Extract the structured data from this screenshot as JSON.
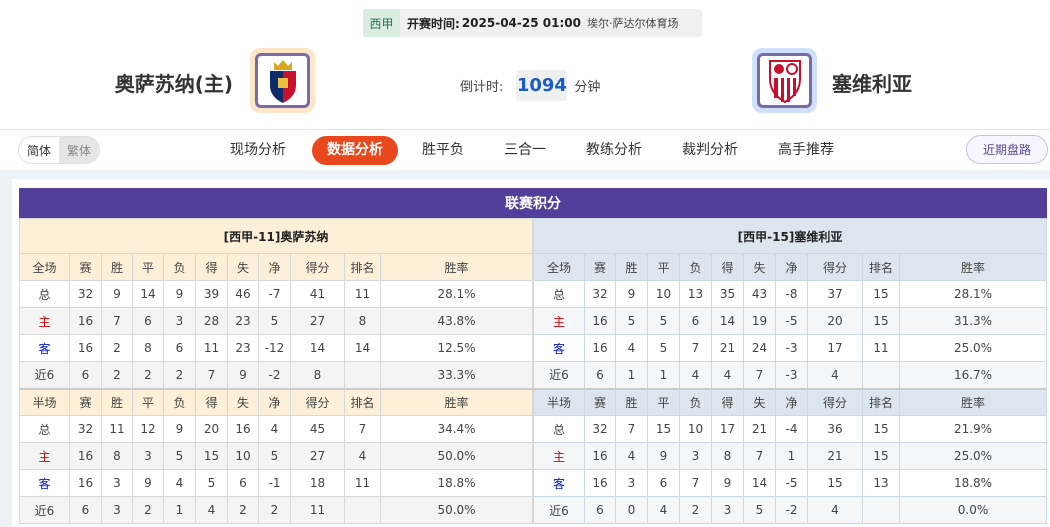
{
  "match_info": {
    "league": "西甲",
    "time_label": "开赛时间:",
    "time": "2025-04-25 01:00",
    "venue": "埃尔·萨达尔体育场"
  },
  "home": {
    "name": "奥萨苏纳(主)",
    "logo_bg": "#fde6c8"
  },
  "away": {
    "name": "塞维利亚",
    "logo_bg": "#cfe0fb"
  },
  "countdown": {
    "label": "倒计时:",
    "value": "1094",
    "unit": "分钟"
  },
  "lang": {
    "simplified": "简体",
    "traditional": "繁体"
  },
  "nav": {
    "items": [
      "现场分析",
      "数据分析",
      "胜平负",
      "三合一",
      "教练分析",
      "裁判分析",
      "高手推荐"
    ],
    "active": "数据分析",
    "recent": "近期盘路"
  },
  "colors": {
    "accent": "#e8481c",
    "title_bar": "#523f9b",
    "count": "#1a5dc8"
  },
  "standings": {
    "title": "联赛积分",
    "home": {
      "team_label": "[西甲-11]奥萨苏纳",
      "full_header": [
        "全场",
        "赛",
        "胜",
        "平",
        "负",
        "得",
        "失",
        "净",
        "得分",
        "排名",
        "胜率"
      ],
      "full_rows": [
        [
          "总",
          "32",
          "9",
          "14",
          "9",
          "39",
          "46",
          "-7",
          "41",
          "11",
          "28.1%"
        ],
        [
          "主",
          "16",
          "7",
          "6",
          "3",
          "28",
          "23",
          "5",
          "27",
          "8",
          "43.8%"
        ],
        [
          "客",
          "16",
          "2",
          "8",
          "6",
          "11",
          "23",
          "-12",
          "14",
          "14",
          "12.5%"
        ],
        [
          "近6",
          "6",
          "2",
          "2",
          "2",
          "7",
          "9",
          "-2",
          "8",
          "",
          "33.3%"
        ]
      ],
      "half_header": [
        "半场",
        "赛",
        "胜",
        "平",
        "负",
        "得",
        "失",
        "净",
        "得分",
        "排名",
        "胜率"
      ],
      "half_rows": [
        [
          "总",
          "32",
          "11",
          "12",
          "9",
          "20",
          "16",
          "4",
          "45",
          "7",
          "34.4%"
        ],
        [
          "主",
          "16",
          "8",
          "3",
          "5",
          "15",
          "10",
          "5",
          "27",
          "4",
          "50.0%"
        ],
        [
          "客",
          "16",
          "3",
          "9",
          "4",
          "5",
          "6",
          "-1",
          "18",
          "11",
          "18.8%"
        ],
        [
          "近6",
          "6",
          "3",
          "2",
          "1",
          "4",
          "2",
          "2",
          "11",
          "",
          "50.0%"
        ]
      ]
    },
    "away": {
      "team_label": "[西甲-15]塞维利亚",
      "full_header": [
        "全场",
        "赛",
        "胜",
        "平",
        "负",
        "得",
        "失",
        "净",
        "得分",
        "排名",
        "胜率"
      ],
      "full_rows": [
        [
          "总",
          "32",
          "9",
          "10",
          "13",
          "35",
          "43",
          "-8",
          "37",
          "15",
          "28.1%"
        ],
        [
          "主",
          "16",
          "5",
          "5",
          "6",
          "14",
          "19",
          "-5",
          "20",
          "15",
          "31.3%"
        ],
        [
          "客",
          "16",
          "4",
          "5",
          "7",
          "21",
          "24",
          "-3",
          "17",
          "11",
          "25.0%"
        ],
        [
          "近6",
          "6",
          "1",
          "1",
          "4",
          "4",
          "7",
          "-3",
          "4",
          "",
          "16.7%"
        ]
      ],
      "half_header": [
        "半场",
        "赛",
        "胜",
        "平",
        "负",
        "得",
        "失",
        "净",
        "得分",
        "排名",
        "胜率"
      ],
      "half_rows": [
        [
          "总",
          "32",
          "7",
          "15",
          "10",
          "17",
          "21",
          "-4",
          "36",
          "15",
          "21.9%"
        ],
        [
          "主",
          "16",
          "4",
          "9",
          "3",
          "8",
          "7",
          "1",
          "21",
          "15",
          "25.0%"
        ],
        [
          "客",
          "16",
          "3",
          "6",
          "7",
          "9",
          "14",
          "-5",
          "15",
          "13",
          "18.8%"
        ],
        [
          "近6",
          "6",
          "0",
          "4",
          "2",
          "3",
          "5",
          "-2",
          "4",
          "",
          "0.0%"
        ]
      ]
    }
  }
}
